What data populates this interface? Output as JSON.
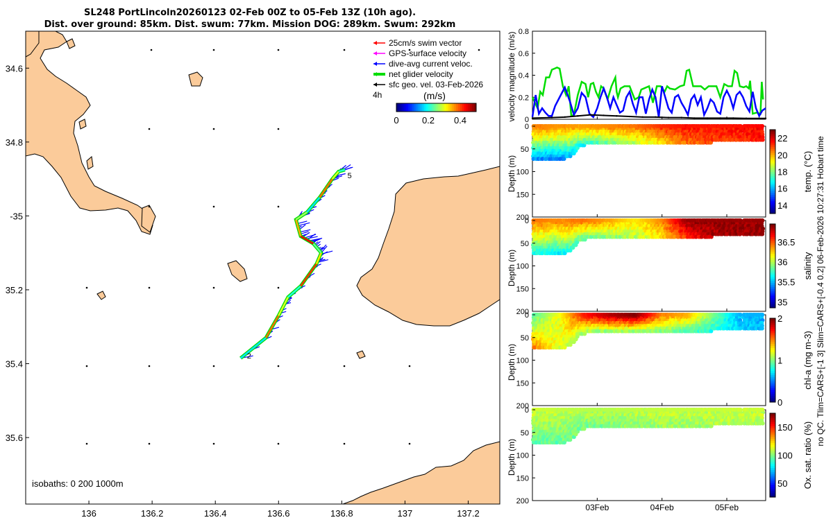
{
  "title": {
    "line1": "SL248 PortLincoln20260123 02-Feb 00Z to 05-Feb 13Z (10h ago).",
    "line2": "Dist. over ground: 85km. Dist. swum: 77km. Mission DOG: 289km. Swum: 292km"
  },
  "side_note": "no QC. Tlim=CARS+[-1 3] Slim=CARS+[-0.4 0.2] 06-Feb-2026 10:27:31 Hobart time",
  "colors": {
    "land": "#fbcb9a",
    "swim_vector": "#ff0000",
    "gps_velocity": "#ff00ff",
    "dive_avg_current": "#0000ff",
    "net_glider_velocity": "#00dd00",
    "sfc_geo_vel": "#000000"
  },
  "chart_data": [
    {
      "type": "map",
      "xlim": [
        135.8,
        137.3
      ],
      "ylim": [
        -35.78,
        -34.5
      ],
      "x_ticks": [
        136,
        136.2,
        136.4,
        136.6,
        136.8,
        137,
        137.2
      ],
      "x_tick_labels": [
        "136",
        "136.2",
        "136.4",
        "136.6",
        "136.8",
        "137",
        "137.2"
      ],
      "y_ticks": [
        -34.6,
        -34.8,
        -35,
        -35.2,
        -35.4,
        -35.6
      ],
      "y_tick_labels": [
        "34.6",
        "34.8",
        "-35",
        "35.2",
        "35.4",
        "35.6"
      ],
      "legend": {
        "entries": [
          "25cm/s swim vector",
          "GPS-surface velocity",
          "dive-avg current veloc.",
          "net glider velocity",
          "sfc geo. vel. 03-Feb-2026"
        ],
        "time_label": "4h",
        "colorbar_label": "(m/s)",
        "colorbar_ticks": [
          "0",
          "0.2",
          "0.4"
        ],
        "colorbar_range": [
          0,
          0.5
        ]
      },
      "isobaths_label": "isobaths: 0   200  1000m",
      "track_labels": [
        {
          "text": "2",
          "lon": 136.5,
          "lat": -35.378
        },
        {
          "text": "5",
          "lon": 136.818,
          "lat": -34.89
        }
      ],
      "track": [
        [
          136.48,
          -35.385
        ],
        [
          136.56,
          -35.33
        ],
        [
          136.6,
          -35.27
        ],
        [
          136.63,
          -35.22
        ],
        [
          136.67,
          -35.19
        ],
        [
          136.72,
          -35.13
        ],
        [
          136.735,
          -35.1
        ],
        [
          136.71,
          -35.075
        ],
        [
          136.67,
          -35.055
        ],
        [
          136.655,
          -35.01
        ],
        [
          136.69,
          -34.99
        ],
        [
          136.73,
          -34.95
        ],
        [
          136.77,
          -34.9
        ],
        [
          136.79,
          -34.88
        ],
        [
          136.81,
          -34.875
        ]
      ]
    },
    {
      "type": "line",
      "ylabel": "velocity magnitude (m/s)",
      "ylim": [
        0,
        0.8
      ],
      "y_ticks": [
        0,
        0.2,
        0.4,
        0.6,
        0.8
      ],
      "x_range_days": [
        2.0,
        5.6
      ],
      "series": [
        {
          "name": "net glider velocity",
          "color": "#00dd00",
          "x": [
            2.0,
            2.08,
            2.12,
            2.16,
            2.21,
            2.26,
            2.3,
            2.34,
            2.38,
            2.42,
            2.47,
            2.52,
            2.56,
            2.6,
            2.64,
            2.7,
            2.76,
            2.82,
            2.86,
            2.9,
            2.94,
            2.98,
            3.02,
            3.06,
            3.1,
            3.16,
            3.22,
            3.28,
            3.3,
            3.32,
            3.36,
            3.42,
            3.5,
            3.58,
            3.64,
            3.68,
            3.72,
            3.8,
            3.86,
            3.92,
            3.98,
            4.04,
            4.08,
            4.12,
            4.2,
            4.28,
            4.34,
            4.38,
            4.42,
            4.48,
            4.54,
            4.6,
            4.66,
            4.72,
            4.78,
            4.84,
            4.9,
            4.96,
            5.02,
            5.08,
            5.12,
            5.16,
            5.2,
            5.26,
            5.3,
            5.34,
            5.36,
            5.4,
            5.46,
            5.52,
            5.54,
            5.56
          ],
          "y": [
            0.2,
            0.1,
            0.25,
            0.22,
            0.38,
            0.38,
            0.45,
            0.46,
            0.47,
            0.46,
            0.3,
            0.22,
            0.3,
            0.03,
            0.04,
            0.22,
            0.34,
            0.32,
            0.2,
            0.32,
            0.33,
            0.25,
            0.2,
            0.3,
            0.28,
            0.18,
            0.3,
            0.38,
            0.25,
            0.2,
            0.28,
            0.3,
            0.3,
            0.18,
            0.2,
            0.27,
            0.28,
            0.3,
            0.15,
            0.3,
            0.3,
            0.25,
            0.3,
            0.28,
            0.27,
            0.3,
            0.31,
            0.44,
            0.45,
            0.3,
            0.3,
            0.3,
            0.27,
            0.3,
            0.3,
            0.3,
            0.2,
            0.32,
            0.3,
            0.3,
            0.44,
            0.42,
            0.3,
            0.29,
            0.3,
            0.28,
            0.35,
            0.05,
            0.06,
            0.05,
            0.34,
            0.18
          ]
        },
        {
          "name": "dive-avg current veloc.",
          "color": "#0000ff",
          "x": [
            2.0,
            2.05,
            2.1,
            2.15,
            2.2,
            2.25,
            2.3,
            2.35,
            2.42,
            2.5,
            2.58,
            2.64,
            2.7,
            2.76,
            2.82,
            2.88,
            2.94,
            3.0,
            3.05,
            3.1,
            3.15,
            3.2,
            3.25,
            3.3,
            3.35,
            3.4,
            3.45,
            3.5,
            3.55,
            3.6,
            3.65,
            3.7,
            3.75,
            3.8,
            3.85,
            3.9,
            3.95,
            4.0,
            4.05,
            4.1,
            4.15,
            4.2,
            4.25,
            4.3,
            4.35,
            4.4,
            4.45,
            4.5,
            4.55,
            4.6,
            4.65,
            4.7,
            4.75,
            4.8,
            4.85,
            4.9,
            4.95,
            5.0,
            5.05,
            5.1,
            5.15,
            5.2,
            5.25,
            5.3,
            5.35,
            5.4,
            5.45,
            5.5,
            5.55,
            5.6
          ],
          "y": [
            0.02,
            0.22,
            0.05,
            0.1,
            0.06,
            0.03,
            0.03,
            0.12,
            0.2,
            0.29,
            0.16,
            0.04,
            0.1,
            0.24,
            0.2,
            0.05,
            0.02,
            0.1,
            0.2,
            0.28,
            0.2,
            0.1,
            0.2,
            0.13,
            0.06,
            0.08,
            0.2,
            0.25,
            0.14,
            0.06,
            0.2,
            0.2,
            0.05,
            0.18,
            0.27,
            0.2,
            0.02,
            0.3,
            0.2,
            0.1,
            0.06,
            0.2,
            0.22,
            0.15,
            0.1,
            0.04,
            0.18,
            0.22,
            0.13,
            0.2,
            0.04,
            0.1,
            0.18,
            0.15,
            0.07,
            0.05,
            0.2,
            0.26,
            0.2,
            0.1,
            0.22,
            0.25,
            0.2,
            0.12,
            0.07,
            0.25,
            0.1,
            0.03,
            0.08,
            0.1
          ]
        },
        {
          "name": "sfc geo. vel.",
          "color": "#000000",
          "x": [
            2.0,
            2.3,
            2.5,
            2.7,
            2.9,
            3.1,
            3.3,
            3.5,
            3.7,
            3.9,
            4.1,
            4.3,
            4.5,
            4.7,
            4.9,
            5.1,
            5.3,
            5.5,
            5.6
          ],
          "y": [
            0.01,
            0.015,
            0.02,
            0.03,
            0.04,
            0.035,
            0.03,
            0.025,
            0.02,
            0.02,
            0.015,
            0.015,
            0.01,
            0.01,
            0.01,
            0.01,
            0.008,
            0.008,
            0.008
          ]
        }
      ]
    },
    {
      "type": "scatter",
      "ylabel": "Depth (m)",
      "ylim": [
        200,
        0
      ],
      "y_ticks": [
        0,
        50,
        100,
        150,
        200
      ],
      "colorbar_label": "temp. (°C)",
      "colorbar_ticks": [
        14,
        16,
        18,
        20,
        22
      ],
      "colorbar_range": [
        13,
        23
      ],
      "gaps_days": [
        [
          5.22,
          5.26
        ]
      ],
      "bottom_profile": {
        "x": [
          2.0,
          2.3,
          2.5,
          2.62,
          2.72,
          2.85,
          3.1,
          5.6
        ],
        "y": [
          78,
          75,
          72,
          65,
          48,
          40,
          38,
          35
        ]
      },
      "value_profile": {
        "x": [
          2.0,
          2.4,
          2.8,
          3.2,
          3.6,
          4.0,
          4.4,
          4.8,
          5.2,
          5.6
        ],
        "surface": [
          20.5,
          20.3,
          20.2,
          20.4,
          20.6,
          21.3,
          21.6,
          21.5,
          21.6,
          21.8
        ],
        "deep": [
          15.2,
          15.3,
          16.8,
          17.8,
          18.5,
          19.5,
          20.7,
          21.1,
          21.3,
          21.5
        ]
      }
    },
    {
      "type": "scatter",
      "ylabel": "Depth (m)",
      "ylim": [
        200,
        0
      ],
      "y_ticks": [
        0,
        50,
        100,
        150,
        200
      ],
      "colorbar_label": "salinity",
      "colorbar_ticks": [
        35,
        35.5,
        36,
        36.5
      ],
      "colorbar_range": [
        34.85,
        36.95
      ],
      "gaps_days": [
        [
          5.22,
          5.26
        ]
      ],
      "bottom_profile": {
        "x": [
          2.0,
          2.3,
          2.5,
          2.62,
          2.72,
          2.85,
          3.1,
          5.6
        ],
        "y": [
          78,
          75,
          72,
          65,
          48,
          40,
          38,
          35
        ]
      },
      "value_profile": {
        "x": [
          2.0,
          2.4,
          2.8,
          3.2,
          3.6,
          4.0,
          4.4,
          4.8,
          5.2,
          5.6
        ],
        "surface": [
          36.45,
          36.4,
          36.45,
          36.35,
          36.2,
          36.4,
          36.9,
          36.9,
          36.9,
          36.9
        ],
        "deep": [
          35.6,
          35.6,
          35.8,
          35.9,
          36.0,
          36.2,
          36.6,
          36.85,
          36.9,
          36.9
        ]
      }
    },
    {
      "type": "scatter",
      "ylabel": "Depth (m)",
      "ylim": [
        200,
        0
      ],
      "y_ticks": [
        0,
        50,
        100,
        150,
        200
      ],
      "colorbar_label": "chl-a (mg m-3)",
      "colorbar_ticks": [
        0,
        1,
        2
      ],
      "colorbar_range": [
        0,
        2
      ],
      "gaps_days": [
        [
          5.22,
          5.26
        ]
      ],
      "bottom_profile": {
        "x": [
          2.0,
          2.3,
          2.5,
          2.62,
          2.72,
          2.85,
          3.1,
          5.6
        ],
        "y": [
          78,
          75,
          72,
          65,
          48,
          40,
          38,
          35
        ]
      },
      "value_profile": {
        "x": [
          2.0,
          2.4,
          2.8,
          3.2,
          3.6,
          4.0,
          4.4,
          4.8,
          5.2,
          5.6
        ],
        "surface": [
          0.9,
          1.2,
          1.7,
          1.9,
          2.0,
          1.5,
          1.4,
          1.0,
          0.6,
          0.6
        ],
        "deep": [
          1.6,
          1.2,
          1.0,
          1.0,
          1.0,
          1.0,
          0.9,
          0.8,
          0.7,
          0.6
        ]
      }
    },
    {
      "type": "scatter",
      "ylabel": "Depth (m)",
      "ylim": [
        200,
        0
      ],
      "y_ticks": [
        0,
        50,
        100,
        150,
        200
      ],
      "colorbar_label": "Ox. sat. ratio (%)",
      "colorbar_ticks": [
        50,
        100,
        150
      ],
      "colorbar_range": [
        25,
        175
      ],
      "gaps_days": [
        [
          5.22,
          5.26
        ]
      ],
      "bottom_profile": {
        "x": [
          2.0,
          2.3,
          2.5,
          2.62,
          2.72,
          2.85,
          3.1,
          5.6
        ],
        "y": [
          78,
          75,
          72,
          65,
          48,
          40,
          38,
          35
        ]
      },
      "value_profile": {
        "x": [
          2.0,
          2.4,
          2.8,
          3.2,
          3.6,
          4.0,
          4.4,
          4.8,
          5.2,
          5.6
        ],
        "surface": [
          112,
          110,
          108,
          108,
          109,
          110,
          110,
          110,
          111,
          111
        ],
        "deep": [
          95,
          96,
          98,
          100,
          102,
          104,
          104,
          106,
          106,
          106
        ]
      }
    }
  ],
  "time_axis": {
    "ticks_days": [
      3,
      4,
      5
    ],
    "tick_labels": [
      "03Feb",
      "04Feb",
      "05Feb"
    ]
  }
}
